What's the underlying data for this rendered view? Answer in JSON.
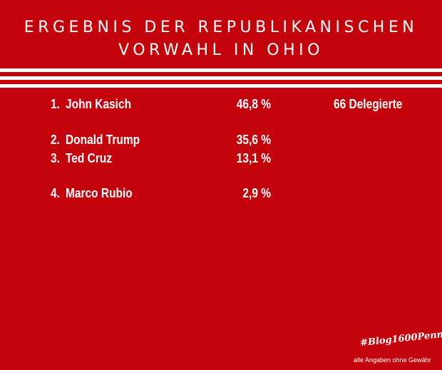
{
  "title": {
    "line1": "ERGEBNIS DER REPUBLIKANISCHEN",
    "line2": "VORWAHL IN OHIO"
  },
  "results": [
    {
      "rank": "1.",
      "name": "John Kasich",
      "percent": "46,8 %",
      "delegates": "66 Delegierte"
    },
    {
      "rank": "2.",
      "name": "Donald Trump",
      "percent": "35,6 %",
      "delegates": ""
    },
    {
      "rank": "3.",
      "name": "Ted Cruz",
      "percent": "13,1 %",
      "delegates": ""
    },
    {
      "rank": "4.",
      "name": "Marco Rubio",
      "percent": "2,9 %",
      "delegates": ""
    }
  ],
  "hashtag": "#Blog1600Penn",
  "footnote": "alle Angaben ohne Gewähr",
  "colors": {
    "background": "#c4040c",
    "text": "#ffffff"
  }
}
